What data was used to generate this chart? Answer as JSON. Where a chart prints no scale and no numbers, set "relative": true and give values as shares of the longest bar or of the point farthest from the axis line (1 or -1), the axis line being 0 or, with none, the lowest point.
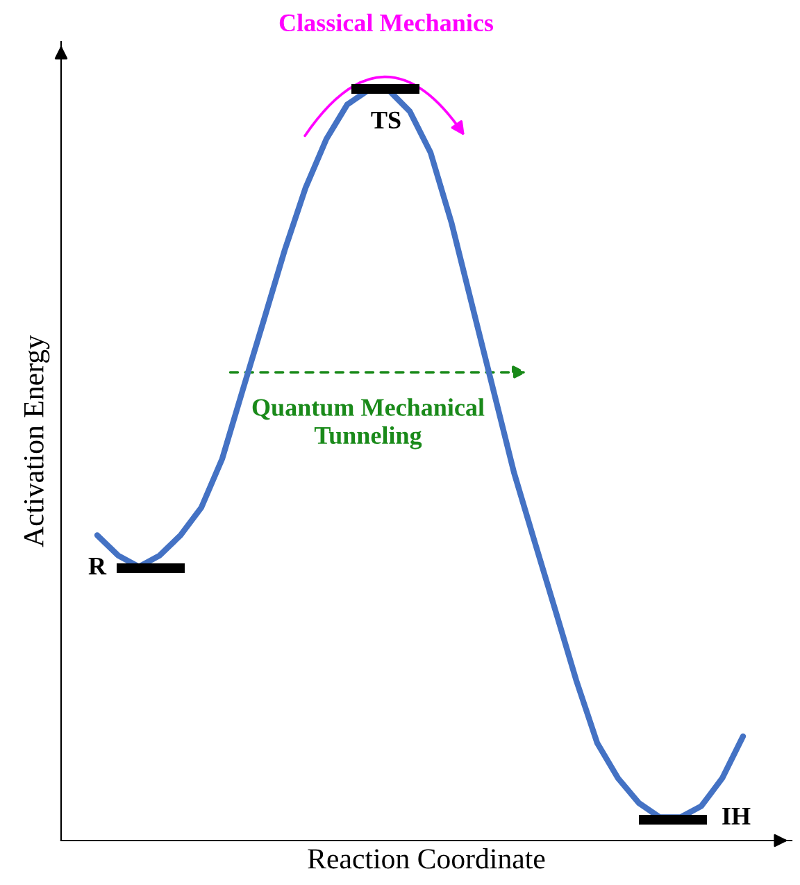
{
  "chart_data": {
    "type": "line",
    "relative": true,
    "xlabel": "Reaction Coordinate",
    "ylabel": "Activation Energy",
    "tick_labels": false,
    "categories": [
      null,
      null,
      null,
      null,
      null,
      null,
      null,
      null,
      null,
      null,
      null,
      null,
      null,
      null,
      null,
      null,
      null,
      null,
      null,
      null,
      null,
      null,
      null,
      null,
      null,
      null,
      null,
      null,
      null,
      null,
      null,
      null
    ],
    "series": [
      {
        "color": "#4472c4",
        "values": [
          0.407,
          0.38,
          0.365,
          0.38,
          0.407,
          0.444,
          0.509,
          0.602,
          0.694,
          0.787,
          0.87,
          0.935,
          0.981,
          1.0,
          1.0,
          0.972,
          0.917,
          0.824,
          0.713,
          0.602,
          0.491,
          0.398,
          0.306,
          0.213,
          0.13,
          0.083,
          0.05,
          0.031,
          0.031,
          0.046,
          0.083,
          0.139
        ]
      }
    ],
    "annotations": [
      "Classical Mechanics",
      "TS",
      "Quantum Mechanical\nTunneling",
      "R",
      "IH"
    ]
  }
}
